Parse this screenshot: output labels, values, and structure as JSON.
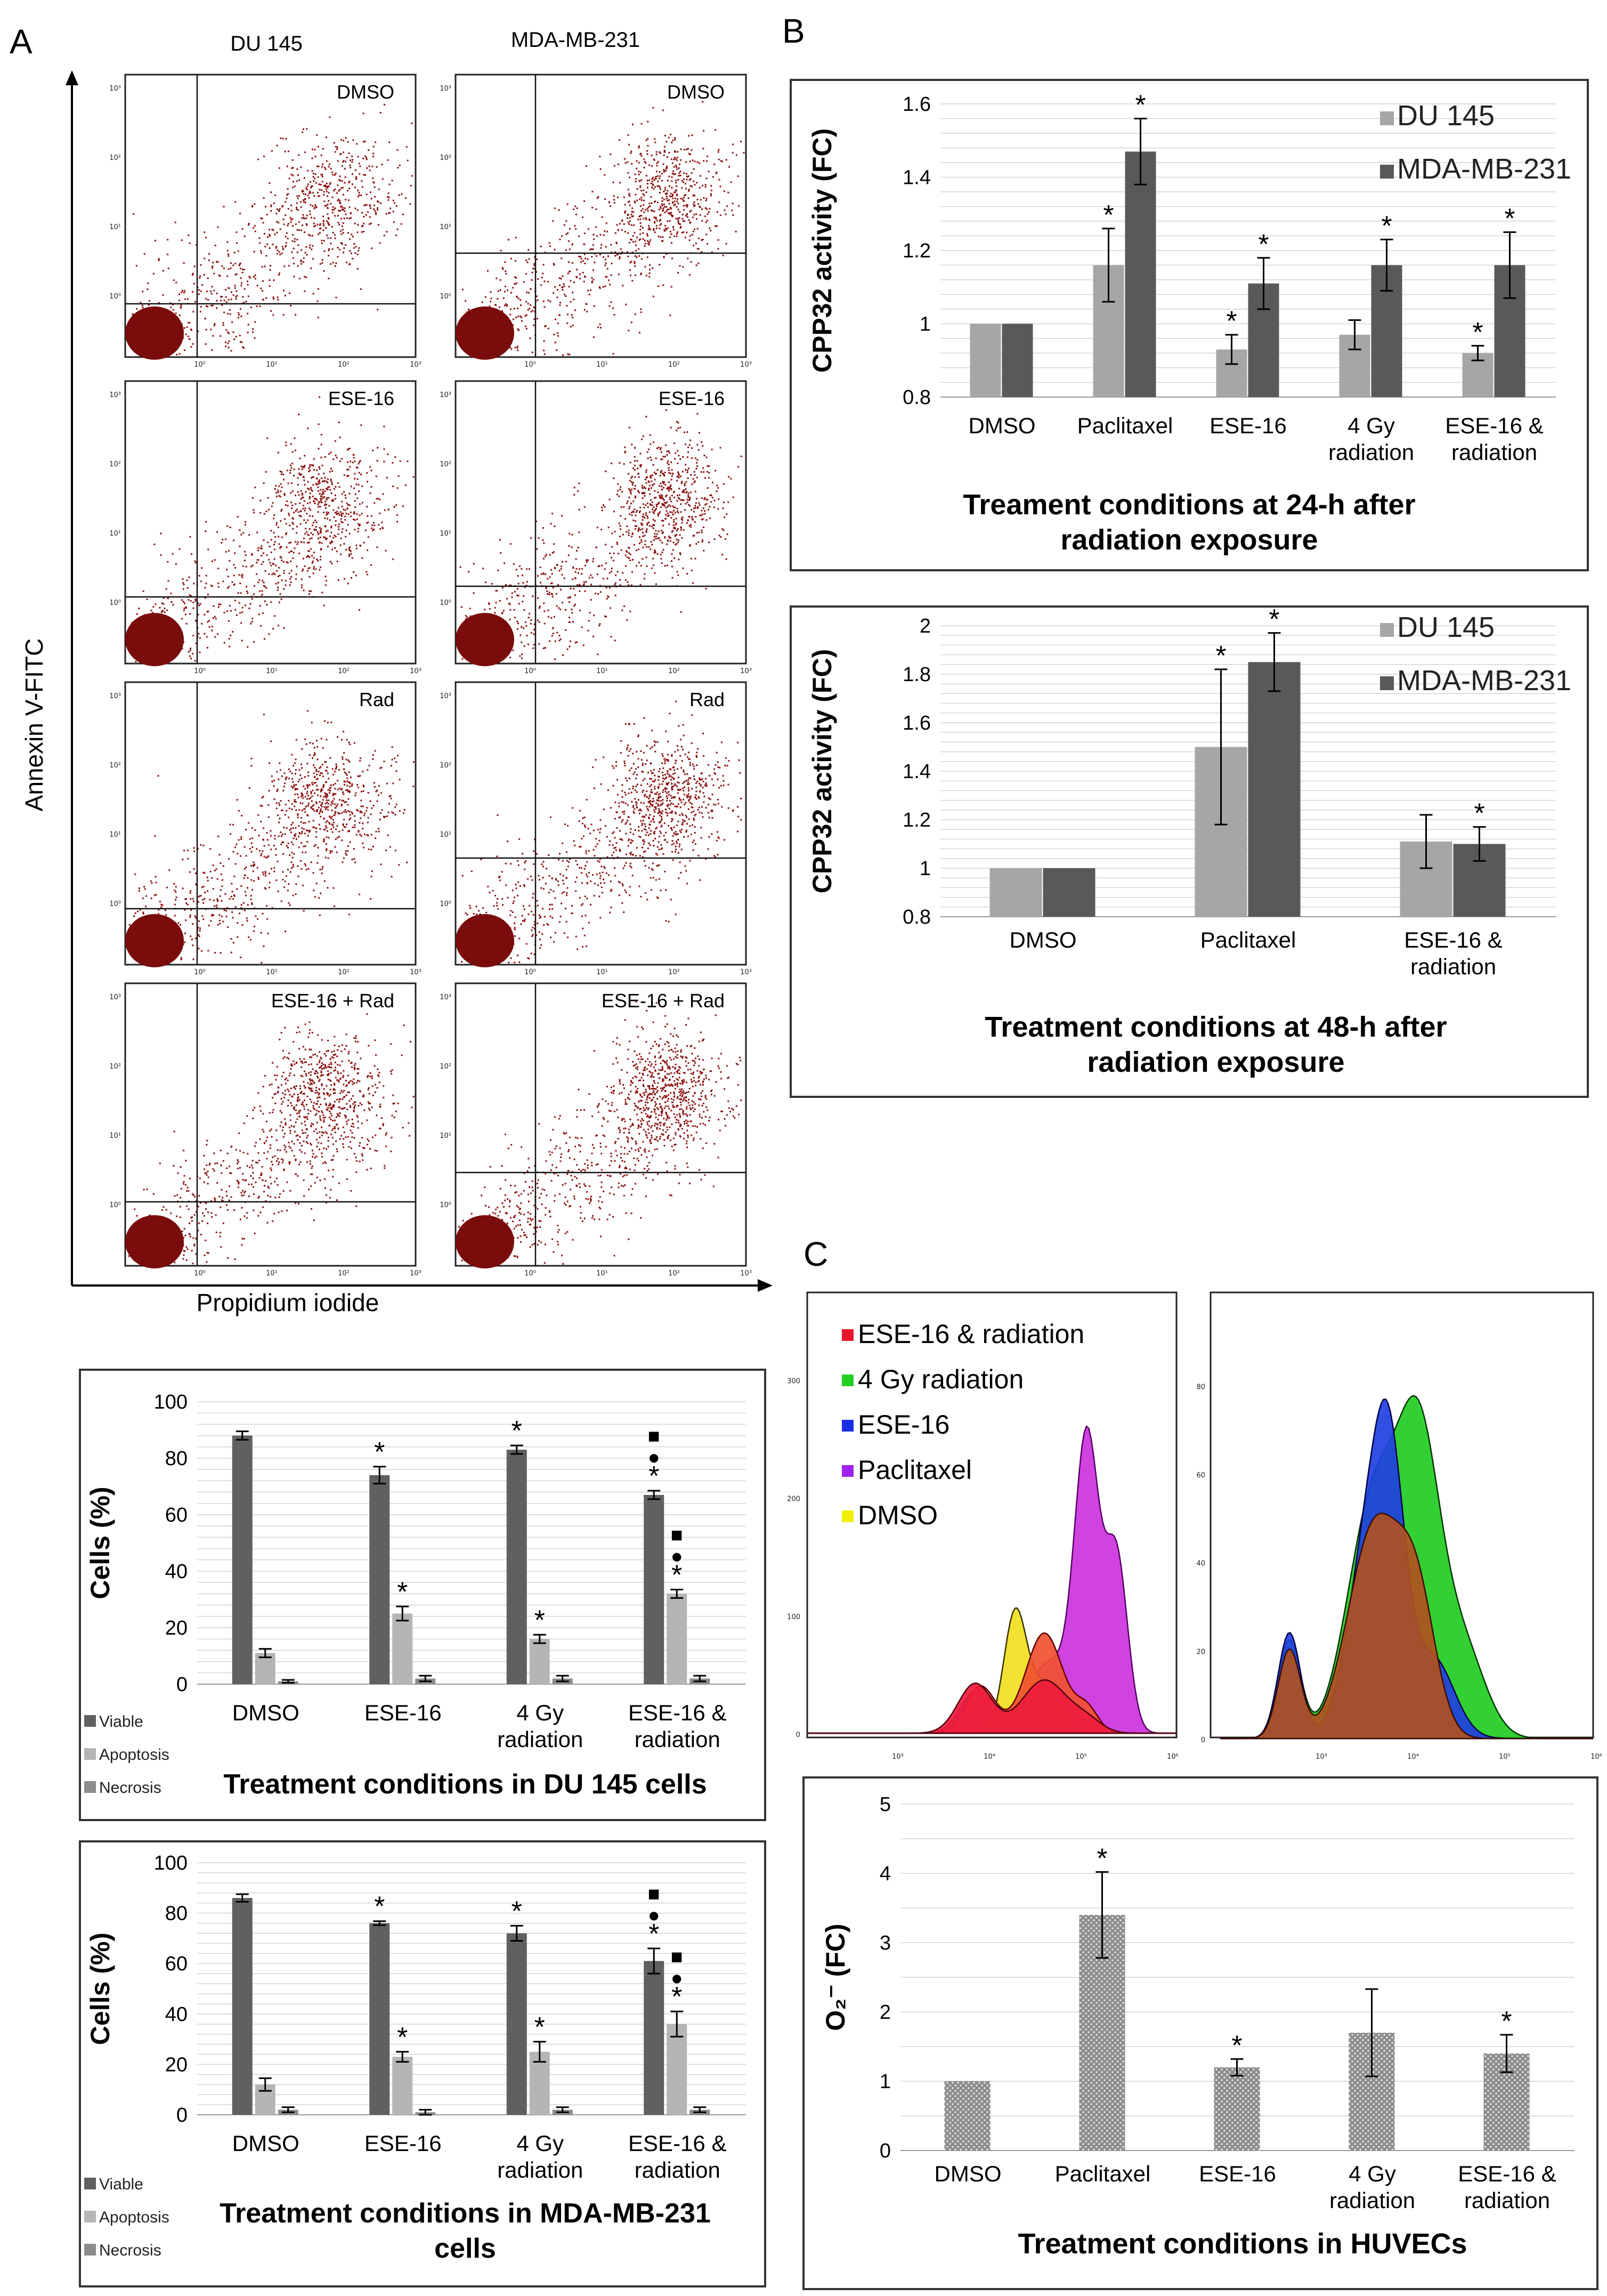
{
  "panels": {
    "a": "A",
    "b": "B",
    "c": "C"
  },
  "flow": {
    "col_headers": [
      "DU 145",
      "MDA-MB-231"
    ],
    "plot_labels": [
      "DMSO",
      "ESE-16",
      "Rad",
      "ESE-16 + Rad"
    ],
    "y_axis_label": "Annexin V-FITC",
    "x_axis_label": "Propidium iodide",
    "decades": [
      "10⁰",
      "10¹",
      "10²",
      "10³"
    ]
  },
  "histo": {
    "legend": [
      "ESE-16 & radiation",
      "4 Gy radiation",
      "ESE-16",
      "Paclitaxel",
      "DMSO"
    ],
    "legend_colors": [
      "#e8142a",
      "#22d022",
      "#1a2ee8",
      "#a020f0",
      "#f0f000"
    ],
    "left_y_ticks": [
      "0",
      "100",
      "200",
      "300"
    ],
    "right_y_ticks": [
      "0",
      "20",
      "40",
      "60",
      "80"
    ],
    "x_ticks": [
      "10³",
      "10⁴",
      "10⁵",
      "10⁶"
    ]
  },
  "chart_data": [
    {
      "id": "b1",
      "type": "bar",
      "ylabel": "CPP32 activity (FC)",
      "ylim": [
        0.8,
        1.6
      ],
      "yticks": [
        "0.8",
        "1",
        "1.2",
        "1.4",
        "1.6"
      ],
      "xlabel_lines": [
        "Treament conditions at 24-h after",
        "radiation exposure"
      ],
      "categories": [
        [
          "DMSO"
        ],
        [
          "Paclitaxel"
        ],
        [
          "ESE-16"
        ],
        [
          "4 Gy",
          "radiation"
        ],
        [
          "ESE-16 &",
          "radiation"
        ]
      ],
      "series": [
        {
          "name": "DU 145",
          "color": "#a6a6a6",
          "values": [
            1.0,
            1.16,
            0.93,
            0.97,
            0.92
          ],
          "errors": [
            0.0,
            0.1,
            0.04,
            0.04,
            0.02
          ],
          "stars": [
            false,
            true,
            true,
            false,
            true
          ]
        },
        {
          "name": "MDA-MB-231",
          "color": "#595959",
          "values": [
            1.0,
            1.47,
            1.11,
            1.16,
            1.16
          ],
          "errors": [
            0.0,
            0.09,
            0.07,
            0.07,
            0.09
          ],
          "stars": [
            false,
            true,
            true,
            true,
            true
          ]
        }
      ]
    },
    {
      "id": "b2",
      "type": "bar",
      "ylabel": "CPP32 activity (FC)",
      "ylim": [
        0.8,
        2.0
      ],
      "yticks": [
        "0.8",
        "1",
        "1.2",
        "1.4",
        "1.6",
        "1.8",
        "2"
      ],
      "xlabel_lines": [
        "Treatment conditions at 48-h after",
        "radiation exposure"
      ],
      "categories": [
        [
          "DMSO"
        ],
        [
          "Paclitaxel"
        ],
        [
          "ESE-16 &",
          "radiation"
        ]
      ],
      "series": [
        {
          "name": "DU 145",
          "color": "#a6a6a6",
          "values": [
            1.0,
            1.5,
            1.11
          ],
          "errors": [
            0.0,
            0.32,
            0.11
          ],
          "stars": [
            false,
            true,
            false
          ]
        },
        {
          "name": "MDA-MB-231",
          "color": "#595959",
          "values": [
            1.0,
            1.85,
            1.1
          ],
          "errors": [
            0.0,
            0.12,
            0.07
          ],
          "stars": [
            false,
            true,
            true
          ]
        }
      ]
    },
    {
      "id": "a1",
      "type": "bar",
      "ylabel": "Cells (%)",
      "ylim": [
        0,
        100
      ],
      "yticks": [
        "0",
        "20",
        "40",
        "60",
        "80",
        "100"
      ],
      "xlabel_lines": [
        "Treatment conditions in DU 145 cells"
      ],
      "categories": [
        [
          "DMSO"
        ],
        [
          "ESE-16"
        ],
        [
          "4 Gy",
          "radiation"
        ],
        [
          "ESE-16 &",
          "radiation"
        ]
      ],
      "series": [
        {
          "name": "Viable",
          "color": "#606060",
          "values": [
            88,
            74,
            83,
            67
          ],
          "errors": [
            1.5,
            3,
            1.5,
            1.5
          ],
          "marks": [
            "",
            "*",
            "*",
            "■●*"
          ]
        },
        {
          "name": "Apoptosis",
          "color": "#b5b5b5",
          "values": [
            11,
            25,
            16,
            32
          ],
          "errors": [
            1.5,
            2.5,
            1.5,
            1.5
          ],
          "marks": [
            "",
            "*",
            "*",
            "■●*"
          ]
        },
        {
          "name": "Necrosis",
          "color": "#8c8c8c",
          "values": [
            1,
            2,
            2,
            2
          ],
          "errors": [
            0.5,
            1,
            1,
            1
          ],
          "marks": [
            "",
            "",
            "",
            ""
          ]
        }
      ]
    },
    {
      "id": "a2",
      "type": "bar",
      "ylabel": "Cells (%)",
      "ylim": [
        0,
        100
      ],
      "yticks": [
        "0",
        "20",
        "40",
        "60",
        "80",
        "100"
      ],
      "xlabel_lines": [
        "Treatment conditions in MDA-MB-231",
        "cells"
      ],
      "categories": [
        [
          "DMSO"
        ],
        [
          "ESE-16"
        ],
        [
          "4 Gy",
          "radiation"
        ],
        [
          "ESE-16 &",
          "radiation"
        ]
      ],
      "series": [
        {
          "name": "Viable",
          "color": "#606060",
          "values": [
            86,
            76,
            72,
            61
          ],
          "errors": [
            1.5,
            0.8,
            3,
            5
          ],
          "marks": [
            "",
            "*",
            "*",
            "■●*"
          ]
        },
        {
          "name": "Apoptosis",
          "color": "#b5b5b5",
          "values": [
            12,
            23,
            25,
            36
          ],
          "errors": [
            2.5,
            2,
            4,
            5
          ],
          "marks": [
            "",
            "*",
            "*",
            "■●*"
          ]
        },
        {
          "name": "Necrosis",
          "color": "#8c8c8c",
          "values": [
            2,
            1,
            2,
            2
          ],
          "errors": [
            1,
            1,
            1,
            1
          ],
          "marks": [
            "",
            "",
            "",
            ""
          ]
        }
      ]
    },
    {
      "id": "c1",
      "type": "bar",
      "ylabel": "O₂⁻ (FC)",
      "ylim": [
        0,
        5
      ],
      "yticks": [
        "0",
        "1",
        "2",
        "3",
        "4",
        "5"
      ],
      "xlabel_lines": [
        "Treatment conditions in HUVECs"
      ],
      "categories": [
        [
          "DMSO"
        ],
        [
          "Paclitaxel"
        ],
        [
          "ESE-16"
        ],
        [
          "4 Gy",
          "radiation"
        ],
        [
          "ESE-16 &",
          "radiation"
        ]
      ],
      "series": [
        {
          "name": "O2-",
          "color": "#888888",
          "values": [
            1.0,
            3.4,
            1.2,
            1.7,
            1.4
          ],
          "errors": [
            0.0,
            0.62,
            0.12,
            0.63,
            0.27
          ],
          "stars": [
            false,
            true,
            true,
            false,
            true
          ]
        }
      ]
    }
  ]
}
